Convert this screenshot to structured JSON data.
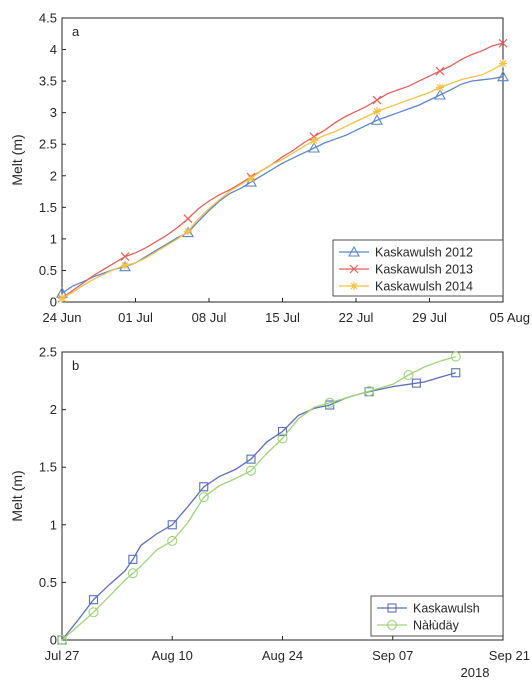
{
  "chart_data": [
    {
      "type": "line",
      "panel_label": "a",
      "ylabel": "Melt (m)",
      "ylim": [
        0,
        4.5
      ],
      "yticks": [
        0,
        0.5,
        1,
        1.5,
        2,
        2.5,
        3,
        3.5,
        4,
        4.5
      ],
      "ytick_labels": [
        "0",
        "0.5",
        "1",
        "1.5",
        "2",
        "2.5",
        "3",
        "3.5",
        "4",
        "4.5"
      ],
      "xlim": [
        "2012-06-24",
        "2012-08-05"
      ],
      "xticks": [
        "2012-06-24",
        "2012-07-01",
        "2012-07-08",
        "2012-07-15",
        "2012-07-22",
        "2012-07-29",
        "2012-08-05"
      ],
      "xtick_labels": [
        "24 Jun",
        "01 Jul",
        "08 Jul",
        "15 Jul",
        "22 Jul",
        "29 Jul",
        "05 Aug"
      ],
      "legend_position": "bottom-right",
      "series": [
        {
          "name": "Kaskawulsh 2012",
          "color": "#5b86c9",
          "marker": "triangle",
          "x": [
            "2012-06-24",
            "2012-06-25",
            "2012-06-26",
            "2012-06-27",
            "2012-06-28",
            "2012-06-29",
            "2012-06-30",
            "2012-07-01",
            "2012-07-02",
            "2012-07-03",
            "2012-07-04",
            "2012-07-05",
            "2012-07-06",
            "2012-07-07",
            "2012-07-08",
            "2012-07-09",
            "2012-07-10",
            "2012-07-11",
            "2012-07-12",
            "2012-07-13",
            "2012-07-14",
            "2012-07-15",
            "2012-07-16",
            "2012-07-17",
            "2012-07-18",
            "2012-07-19",
            "2012-07-20",
            "2012-07-21",
            "2012-07-22",
            "2012-07-23",
            "2012-07-24",
            "2012-07-25",
            "2012-07-26",
            "2012-07-27",
            "2012-07-28",
            "2012-07-29",
            "2012-07-30",
            "2012-07-31",
            "2012-08-01",
            "2012-08-02",
            "2012-08-03",
            "2012-08-04",
            "2012-08-05"
          ],
          "values": [
            0.14,
            0.25,
            0.32,
            0.4,
            0.46,
            0.52,
            0.56,
            0.62,
            0.72,
            0.82,
            0.92,
            1.02,
            1.1,
            1.28,
            1.45,
            1.6,
            1.72,
            1.8,
            1.9,
            2.0,
            2.1,
            2.2,
            2.28,
            2.36,
            2.44,
            2.52,
            2.58,
            2.64,
            2.72,
            2.8,
            2.88,
            2.94,
            3.0,
            3.06,
            3.12,
            3.2,
            3.28,
            3.36,
            3.45,
            3.5,
            3.52,
            3.54,
            3.57
          ],
          "marker_every": 6
        },
        {
          "name": "Kaskawulsh 2013",
          "color": "#e0605b",
          "marker": "x",
          "x": [
            "2012-06-24",
            "2012-06-25",
            "2012-06-26",
            "2012-06-27",
            "2012-06-28",
            "2012-06-29",
            "2012-06-30",
            "2012-07-01",
            "2012-07-02",
            "2012-07-03",
            "2012-07-04",
            "2012-07-05",
            "2012-07-06",
            "2012-07-07",
            "2012-07-08",
            "2012-07-09",
            "2012-07-10",
            "2012-07-11",
            "2012-07-12",
            "2012-07-13",
            "2012-07-14",
            "2012-07-15",
            "2012-07-16",
            "2012-07-17",
            "2012-07-18",
            "2012-07-19",
            "2012-07-20",
            "2012-07-21",
            "2012-07-22",
            "2012-07-23",
            "2012-07-24",
            "2012-07-25",
            "2012-07-26",
            "2012-07-27",
            "2012-07-28",
            "2012-07-29",
            "2012-07-30",
            "2012-07-31",
            "2012-08-01",
            "2012-08-02",
            "2012-08-03",
            "2012-08-04",
            "2012-08-05"
          ],
          "values": [
            0.06,
            0.18,
            0.3,
            0.42,
            0.52,
            0.62,
            0.72,
            0.78,
            0.86,
            0.96,
            1.06,
            1.18,
            1.32,
            1.48,
            1.6,
            1.7,
            1.78,
            1.88,
            1.98,
            2.08,
            2.18,
            2.3,
            2.4,
            2.52,
            2.62,
            2.72,
            2.84,
            2.94,
            3.02,
            3.1,
            3.2,
            3.3,
            3.36,
            3.42,
            3.5,
            3.58,
            3.66,
            3.74,
            3.84,
            3.92,
            3.98,
            4.06,
            4.1
          ],
          "marker_every": 6
        },
        {
          "name": "Kaskawulsh 2014",
          "color": "#f2c24a",
          "marker": "star",
          "x": [
            "2012-06-24",
            "2012-06-25",
            "2012-06-26",
            "2012-06-27",
            "2012-06-28",
            "2012-06-29",
            "2012-06-30",
            "2012-07-01",
            "2012-07-02",
            "2012-07-03",
            "2012-07-04",
            "2012-07-05",
            "2012-07-06",
            "2012-07-07",
            "2012-07-08",
            "2012-07-09",
            "2012-07-10",
            "2012-07-11",
            "2012-07-12",
            "2012-07-13",
            "2012-07-14",
            "2012-07-15",
            "2012-07-16",
            "2012-07-17",
            "2012-07-18",
            "2012-07-19",
            "2012-07-20",
            "2012-07-21",
            "2012-07-22",
            "2012-07-23",
            "2012-07-24",
            "2012-07-25",
            "2012-07-26",
            "2012-07-27",
            "2012-07-28",
            "2012-07-29",
            "2012-07-30",
            "2012-07-31",
            "2012-08-01",
            "2012-08-02",
            "2012-08-03",
            "2012-08-04",
            "2012-08-05"
          ],
          "values": [
            0.06,
            0.15,
            0.26,
            0.36,
            0.44,
            0.52,
            0.58,
            0.62,
            0.7,
            0.8,
            0.9,
            1.0,
            1.12,
            1.32,
            1.48,
            1.62,
            1.76,
            1.86,
            1.96,
            2.08,
            2.18,
            2.26,
            2.36,
            2.46,
            2.56,
            2.64,
            2.7,
            2.78,
            2.86,
            2.94,
            3.02,
            3.08,
            3.14,
            3.2,
            3.26,
            3.32,
            3.4,
            3.46,
            3.52,
            3.56,
            3.6,
            3.68,
            3.78
          ],
          "marker_every": 6
        }
      ]
    },
    {
      "type": "line",
      "panel_label": "b",
      "ylabel": "Melt (m)",
      "ylim": [
        0,
        2.5
      ],
      "yticks": [
        0,
        0.5,
        1,
        1.5,
        2,
        2.5
      ],
      "ytick_labels": [
        "0",
        "0.5",
        "1",
        "1.5",
        "2",
        "2.5"
      ],
      "xlim": [
        "2018-07-27",
        "2018-09-21"
      ],
      "xticks": [
        "2018-07-27",
        "2018-08-10",
        "2018-08-24",
        "2018-09-07",
        "2018-09-21"
      ],
      "xtick_labels": [
        "Jul 27",
        "Aug 10",
        "Aug 24",
        "Sep 07",
        "Sep 21"
      ],
      "xaxis_year_label": "2018",
      "legend_position": "bottom-right",
      "series": [
        {
          "name": "Kaskawulsh",
          "color": "#5b6fb8",
          "marker": "square",
          "x": [
            "2018-07-27",
            "2018-07-29",
            "2018-07-31",
            "2018-08-02",
            "2018-08-04",
            "2018-08-05",
            "2018-08-06",
            "2018-08-08",
            "2018-08-10",
            "2018-08-12",
            "2018-08-14",
            "2018-08-16",
            "2018-08-18",
            "2018-08-20",
            "2018-08-22",
            "2018-08-24",
            "2018-08-26",
            "2018-08-28",
            "2018-08-30",
            "2018-09-01",
            "2018-09-03",
            "2018-09-05",
            "2018-09-07",
            "2018-09-09",
            "2018-09-11",
            "2018-09-13",
            "2018-09-15"
          ],
          "values": [
            0.0,
            0.17,
            0.35,
            0.48,
            0.6,
            0.7,
            0.82,
            0.92,
            1.0,
            1.16,
            1.33,
            1.42,
            1.48,
            1.57,
            1.72,
            1.81,
            1.95,
            2.01,
            2.04,
            2.1,
            2.14,
            2.17,
            2.2,
            2.22,
            2.24,
            2.28,
            2.32
          ],
          "markers_at": [
            "2018-07-27",
            "2018-07-31",
            "2018-08-05",
            "2018-08-10",
            "2018-08-14",
            "2018-08-20",
            "2018-08-24",
            "2018-08-30",
            "2018-09-04",
            "2018-09-10",
            "2018-09-15"
          ]
        },
        {
          "name": "Nàłùdäy",
          "color": "#9fd37a",
          "marker": "circle",
          "x": [
            "2018-07-27",
            "2018-07-29",
            "2018-07-31",
            "2018-08-02",
            "2018-08-04",
            "2018-08-06",
            "2018-08-08",
            "2018-08-10",
            "2018-08-12",
            "2018-08-14",
            "2018-08-16",
            "2018-08-18",
            "2018-08-20",
            "2018-08-22",
            "2018-08-24",
            "2018-08-26",
            "2018-08-28",
            "2018-08-30",
            "2018-09-01",
            "2018-09-03",
            "2018-09-05",
            "2018-09-07",
            "2018-09-09",
            "2018-09-11",
            "2018-09-13",
            "2018-09-15"
          ],
          "values": [
            0.0,
            0.12,
            0.24,
            0.38,
            0.52,
            0.64,
            0.78,
            0.86,
            1.02,
            1.24,
            1.34,
            1.4,
            1.47,
            1.62,
            1.75,
            1.92,
            2.02,
            2.06,
            2.1,
            2.14,
            2.18,
            2.22,
            2.3,
            2.37,
            2.42,
            2.46
          ],
          "markers_at": [
            "2018-07-27",
            "2018-07-31",
            "2018-08-05",
            "2018-08-10",
            "2018-08-14",
            "2018-08-20",
            "2018-08-24",
            "2018-08-30",
            "2018-09-04",
            "2018-09-09",
            "2018-09-15"
          ]
        }
      ]
    }
  ]
}
